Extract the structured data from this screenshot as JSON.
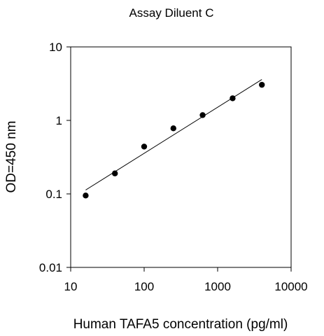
{
  "chart_data": {
    "type": "scatter",
    "title": "Assay Diluent C",
    "xlabel": "Human TAFA5 concentration (pg/ml)",
    "ylabel": "OD=450 nm",
    "x_scale": "log",
    "y_scale": "log",
    "xlim": [
      10,
      10000
    ],
    "ylim": [
      0.01,
      10
    ],
    "x_ticks": [
      10,
      100,
      1000,
      10000
    ],
    "x_tick_labels": [
      "10",
      "100",
      "1000",
      "10000"
    ],
    "y_ticks": [
      0.01,
      0.1,
      1,
      10
    ],
    "y_tick_labels": [
      "0.01",
      "0.1",
      "1",
      "10"
    ],
    "grid": false,
    "legend": "none",
    "series": [
      {
        "points": [
          {
            "x": 16,
            "y": 0.095
          },
          {
            "x": 40,
            "y": 0.19
          },
          {
            "x": 100,
            "y": 0.44
          },
          {
            "x": 250,
            "y": 0.78
          },
          {
            "x": 625,
            "y": 1.18
          },
          {
            "x": 1600,
            "y": 2.0
          },
          {
            "x": 4000,
            "y": 3.05
          }
        ],
        "color": "#000000"
      }
    ],
    "fit_line": {
      "x": [
        16,
        4000
      ],
      "y": [
        0.113,
        3.6
      ],
      "color": "#000000"
    }
  }
}
